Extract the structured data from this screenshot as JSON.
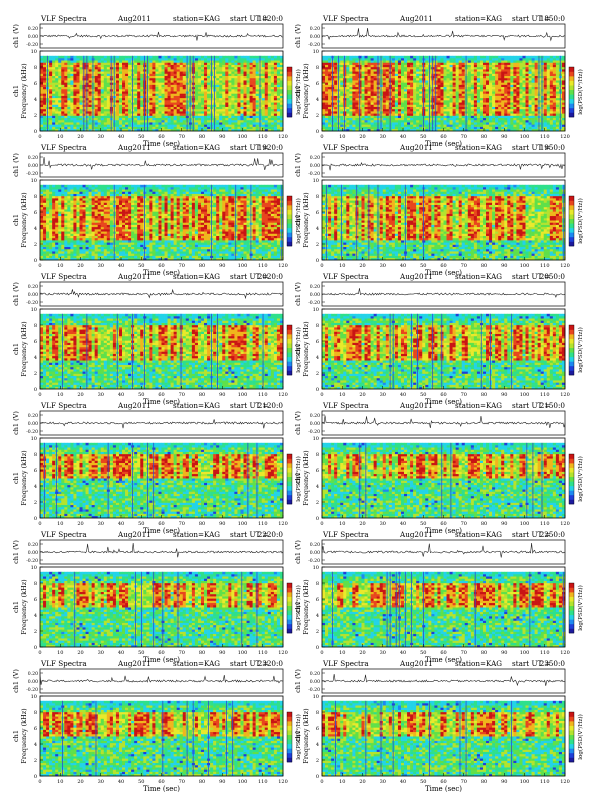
{
  "page": {
    "title": ""
  },
  "colors": {
    "spectrogram_palette": [
      "#1c1a9e",
      "#1f3fd8",
      "#1e88f0",
      "#23d3e8",
      "#2ee08c",
      "#5fe04a",
      "#b3e32e",
      "#e9e92b",
      "#f0b51c",
      "#e8461d",
      "#c91414"
    ],
    "trace": "#222222",
    "axis": "#000000"
  },
  "common": {
    "site_label": "VLF Spectra",
    "date_label": "Aug2011",
    "station_label": "station=KAG",
    "ut_prefix": "start UT =",
    "time_axis_label": "Time (sec)",
    "freq_axis_label": "Frequency (kHz)",
    "channel_label": "ch1",
    "amp_axis_label": "ch1 (V)",
    "colorbar_label": "log(PSD(V²/Hz))"
  },
  "chart_data": [
    {
      "type": "heatmap",
      "panel": "1820",
      "start_ut": "1820:0",
      "xlabel": "Time (sec)",
      "ylabel": "Frequency (kHz)",
      "x_ticks": [
        0,
        10,
        20,
        30,
        40,
        50,
        60,
        70,
        80,
        90,
        100,
        110,
        120
      ],
      "y_ticks": [
        0,
        2,
        4,
        6,
        8,
        10
      ],
      "amp_ticks": [
        "0.20",
        "0.00",
        "-0.20"
      ],
      "xlim": [
        0,
        120
      ],
      "ylim": [
        0,
        10
      ],
      "band_top_khz": 9.4,
      "band_red_khz": [
        2.0,
        8.6
      ],
      "trace_ylim": [
        -0.3,
        0.3
      ]
    },
    {
      "type": "heatmap",
      "panel": "1850",
      "start_ut": "1850:0",
      "xlabel": "Time (sec)",
      "ylabel": "Frequency (kHz)",
      "x_ticks": [
        0,
        10,
        20,
        30,
        40,
        50,
        60,
        70,
        80,
        90,
        100,
        110,
        120
      ],
      "y_ticks": [
        0,
        2,
        4,
        6,
        8,
        10
      ],
      "amp_ticks": [
        "0.20",
        "0.00",
        "-0.20"
      ],
      "xlim": [
        0,
        120
      ],
      "ylim": [
        0,
        10
      ],
      "band_top_khz": 9.4,
      "band_red_khz": [
        2.0,
        8.6
      ],
      "trace_ylim": [
        -0.3,
        0.3
      ]
    },
    {
      "type": "heatmap",
      "panel": "1920",
      "start_ut": "1920:0",
      "xlabel": "Time (sec)",
      "ylabel": "Frequency (kHz)",
      "x_ticks": [
        0,
        10,
        20,
        30,
        40,
        50,
        60,
        70,
        80,
        90,
        100,
        110,
        120
      ],
      "y_ticks": [
        0,
        2,
        4,
        6,
        8,
        10
      ],
      "amp_ticks": [
        "0.20",
        "0.00",
        "-0.20"
      ],
      "xlim": [
        0,
        120
      ],
      "ylim": [
        0,
        10
      ],
      "band_top_khz": 9.4,
      "band_red_khz": [
        2.5,
        8.0
      ],
      "trace_ylim": [
        -0.3,
        0.3
      ]
    },
    {
      "type": "heatmap",
      "panel": "1950",
      "start_ut": "1950:0",
      "xlabel": "Time (sec)",
      "ylabel": "Frequency (kHz)",
      "x_ticks": [
        0,
        10,
        20,
        30,
        40,
        50,
        60,
        70,
        80,
        90,
        100,
        110,
        120
      ],
      "y_ticks": [
        0,
        2,
        4,
        6,
        8,
        10
      ],
      "amp_ticks": [
        "0.20",
        "0.00",
        "-0.20"
      ],
      "xlim": [
        0,
        120
      ],
      "ylim": [
        0,
        10
      ],
      "band_top_khz": 9.4,
      "band_red_khz": [
        2.5,
        8.0
      ],
      "trace_ylim": [
        -0.3,
        0.3
      ]
    },
    {
      "type": "heatmap",
      "panel": "2020",
      "start_ut": "2020:0",
      "xlabel": "Time (sec)",
      "ylabel": "Frequency (kHz)",
      "x_ticks": [
        0,
        10,
        20,
        30,
        40,
        50,
        60,
        70,
        80,
        90,
        100,
        110,
        120
      ],
      "y_ticks": [
        0,
        2,
        4,
        6,
        8,
        10
      ],
      "amp_ticks": [
        "0.20",
        "0.00",
        "-0.20"
      ],
      "xlim": [
        0,
        120
      ],
      "ylim": [
        0,
        10
      ],
      "band_top_khz": 9.4,
      "band_red_khz": [
        3.5,
        8.0
      ],
      "trace_ylim": [
        -0.3,
        0.3
      ]
    },
    {
      "type": "heatmap",
      "panel": "2050",
      "start_ut": "2050:0",
      "xlabel": "Time (sec)",
      "ylabel": "Frequency (kHz)",
      "x_ticks": [
        0,
        10,
        20,
        30,
        40,
        50,
        60,
        70,
        80,
        90,
        100,
        110,
        120
      ],
      "y_ticks": [
        0,
        2,
        4,
        6,
        8,
        10
      ],
      "amp_ticks": [
        "0.20",
        "0.00",
        "-0.20"
      ],
      "xlim": [
        0,
        120
      ],
      "ylim": [
        0,
        10
      ],
      "band_top_khz": 9.4,
      "band_red_khz": [
        3.5,
        8.0
      ],
      "trace_ylim": [
        -0.3,
        0.3
      ]
    },
    {
      "type": "heatmap",
      "panel": "2120",
      "start_ut": "2120:0",
      "xlabel": "Time (sec)",
      "ylabel": "Frequency (kHz)",
      "x_ticks": [
        0,
        10,
        20,
        30,
        40,
        50,
        60,
        70,
        80,
        90,
        100,
        110,
        120
      ],
      "y_ticks": [
        0,
        2,
        4,
        6,
        8,
        10
      ],
      "amp_ticks": [
        "0.20",
        "0.00",
        "-0.20"
      ],
      "xlim": [
        0,
        120
      ],
      "ylim": [
        0,
        10
      ],
      "band_top_khz": 9.4,
      "band_red_khz": [
        5.0,
        8.0
      ],
      "trace_ylim": [
        -0.3,
        0.3
      ]
    },
    {
      "type": "heatmap",
      "panel": "2150",
      "start_ut": "2150:0",
      "xlabel": "Time (sec)",
      "ylabel": "Frequency (kHz)",
      "x_ticks": [
        0,
        10,
        20,
        30,
        40,
        50,
        60,
        70,
        80,
        90,
        100,
        110,
        120
      ],
      "y_ticks": [
        0,
        2,
        4,
        6,
        8,
        10
      ],
      "amp_ticks": [
        "0.20",
        "0.00",
        "-0.20"
      ],
      "xlim": [
        0,
        120
      ],
      "ylim": [
        0,
        10
      ],
      "band_top_khz": 9.4,
      "band_red_khz": [
        5.0,
        8.0
      ],
      "trace_ylim": [
        -0.3,
        0.3
      ]
    },
    {
      "type": "heatmap",
      "panel": "2220",
      "start_ut": "2220:0",
      "xlabel": "Time (sec)",
      "ylabel": "Frequency (kHz)",
      "x_ticks": [
        0,
        10,
        20,
        30,
        40,
        50,
        60,
        70,
        80,
        90,
        100,
        110,
        120
      ],
      "y_ticks": [
        0,
        2,
        4,
        6,
        8,
        10
      ],
      "amp_ticks": [
        "0.20",
        "0.00",
        "-0.20"
      ],
      "xlim": [
        0,
        120
      ],
      "ylim": [
        0,
        10
      ],
      "band_top_khz": 9.4,
      "band_red_khz": [
        5.0,
        8.0
      ],
      "trace_ylim": [
        -0.3,
        0.3
      ]
    },
    {
      "type": "heatmap",
      "panel": "2250",
      "start_ut": "2250:0",
      "xlabel": "Time (sec)",
      "ylabel": "Frequency (kHz)",
      "x_ticks": [
        0,
        10,
        20,
        30,
        40,
        50,
        60,
        70,
        80,
        90,
        100,
        110,
        120
      ],
      "y_ticks": [
        0,
        2,
        4,
        6,
        8,
        10
      ],
      "amp_ticks": [
        "0.20",
        "0.00",
        "-0.20"
      ],
      "xlim": [
        0,
        120
      ],
      "ylim": [
        0,
        10
      ],
      "band_top_khz": 9.4,
      "band_red_khz": [
        5.0,
        8.0
      ],
      "trace_ylim": [
        -0.3,
        0.3
      ]
    },
    {
      "type": "heatmap",
      "panel": "2320",
      "start_ut": "2320:0",
      "xlabel": "Time (sec)",
      "ylabel": "Frequency (kHz)",
      "x_ticks": [
        0,
        10,
        20,
        30,
        40,
        50,
        60,
        70,
        80,
        90,
        100,
        110,
        120
      ],
      "y_ticks": [
        0,
        2,
        4,
        6,
        8,
        10
      ],
      "amp_ticks": [
        "0.20",
        "0.00",
        "-0.20"
      ],
      "xlim": [
        0,
        120
      ],
      "ylim": [
        0,
        10
      ],
      "band_top_khz": 9.4,
      "band_red_khz": [
        5.0,
        8.0
      ],
      "trace_ylim": [
        -0.3,
        0.3
      ]
    },
    {
      "type": "heatmap",
      "panel": "2350",
      "start_ut": "2350:0",
      "xlabel": "Time (sec)",
      "ylabel": "Frequency (kHz)",
      "x_ticks": [
        0,
        10,
        20,
        30,
        40,
        50,
        60,
        70,
        80,
        90,
        100,
        110,
        120
      ],
      "y_ticks": [
        0,
        2,
        4,
        6,
        8,
        10
      ],
      "amp_ticks": [
        "0.20",
        "0.00",
        "-0.20"
      ],
      "xlim": [
        0,
        120
      ],
      "ylim": [
        0,
        10
      ],
      "band_top_khz": 9.4,
      "band_red_khz": [
        5.0,
        8.0
      ],
      "trace_ylim": [
        -0.3,
        0.3
      ]
    }
  ]
}
